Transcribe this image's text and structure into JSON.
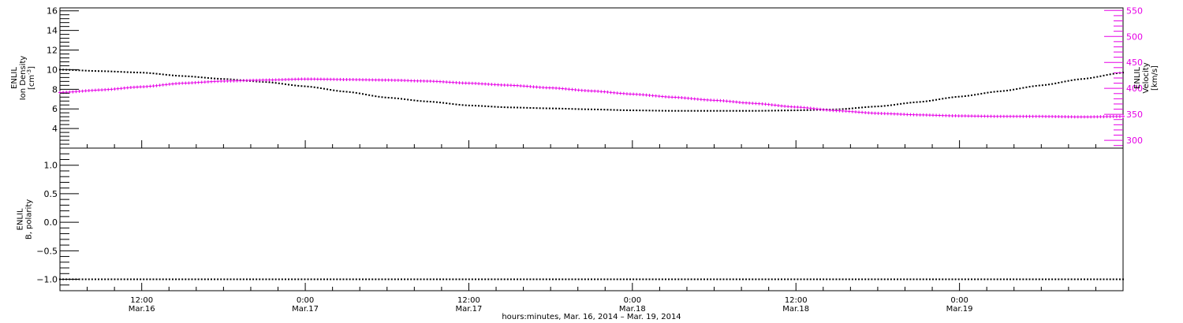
{
  "colors": {
    "density": "#000000",
    "velocity": "#e600e6",
    "polarity": "#000000",
    "axis": "#000000"
  },
  "chart_data": [
    {
      "type": "line",
      "panel": "top",
      "ylabel_lines": [
        "ENLIL",
        "Ion Density",
        "[cm⁻³]"
      ],
      "ylabel_left": {
        "lines": [
          "ENLIL",
          "Ion Density",
          "[cm"
        ],
        "sup": "-3",
        "close": "]"
      },
      "ylabel_right_lines": [
        "ENLIL",
        "Velocity",
        "[km/s]"
      ],
      "y_left": {
        "range": [
          2.0,
          16.3
        ],
        "ticks": [
          4,
          6,
          8,
          10,
          12,
          14,
          16
        ]
      },
      "y_right": {
        "range": [
          285,
          555
        ],
        "ticks": [
          300,
          350,
          400,
          450,
          500,
          550
        ]
      },
      "series": [
        {
          "axis": "left",
          "x": [
            0,
            3,
            6,
            9,
            12,
            15,
            18,
            21,
            24,
            27,
            30,
            33,
            36,
            39,
            42,
            45,
            48,
            51,
            54,
            57,
            60,
            63,
            66,
            69,
            72,
            75,
            78
          ],
          "values": [
            10.0,
            9.85,
            9.7,
            9.35,
            9.05,
            8.75,
            8.3,
            7.75,
            7.15,
            6.75,
            6.35,
            6.15,
            6.05,
            5.95,
            5.85,
            5.8,
            5.8,
            5.8,
            5.85,
            5.95,
            6.25,
            6.7,
            7.25,
            7.8,
            8.4,
            9.05,
            9.7
          ]
        },
        {
          "axis": "right",
          "x": [
            0,
            3,
            6,
            9,
            12,
            15,
            18,
            21,
            24,
            27,
            30,
            33,
            36,
            39,
            42,
            45,
            48,
            51,
            54,
            57,
            60,
            63,
            66,
            69,
            72,
            75,
            78
          ],
          "values": [
            392,
            397,
            403,
            410,
            414,
            416,
            418,
            417,
            416,
            414,
            410,
            406,
            401,
            395,
            389,
            383,
            377,
            371,
            364,
            357,
            352,
            349,
            347,
            346,
            346,
            345,
            346
          ]
        }
      ]
    },
    {
      "type": "line",
      "panel": "bottom",
      "ylabel_lines": [
        "ENLIL",
        "B, polarity"
      ],
      "y_left": {
        "range": [
          -1.2,
          1.3
        ],
        "ticks": [
          -1.0,
          -0.5,
          0.0,
          0.5,
          1.0
        ],
        "tick_labels": [
          "−1.0",
          "−0.5",
          "0.0",
          "0.5",
          "1.0"
        ]
      },
      "series": [
        {
          "axis": "left",
          "x": [
            0,
            78
          ],
          "values": [
            -1.0,
            -1.0
          ]
        }
      ]
    }
  ],
  "x_axis": {
    "range": [
      0,
      78
    ],
    "ticks": [
      {
        "x": 6,
        "time": "12:00",
        "date": "Mar.16"
      },
      {
        "x": 18,
        "time": "0:00",
        "date": "Mar.17"
      },
      {
        "x": 30,
        "time": "12:00",
        "date": "Mar.17"
      },
      {
        "x": 42,
        "time": "0:00",
        "date": "Mar.18"
      },
      {
        "x": 54,
        "time": "12:00",
        "date": "Mar.18"
      },
      {
        "x": 66,
        "time": "0:00",
        "date": "Mar.19"
      }
    ],
    "xlabel": "hours:minutes, Mar. 16, 2014 – Mar. 19, 2014"
  }
}
